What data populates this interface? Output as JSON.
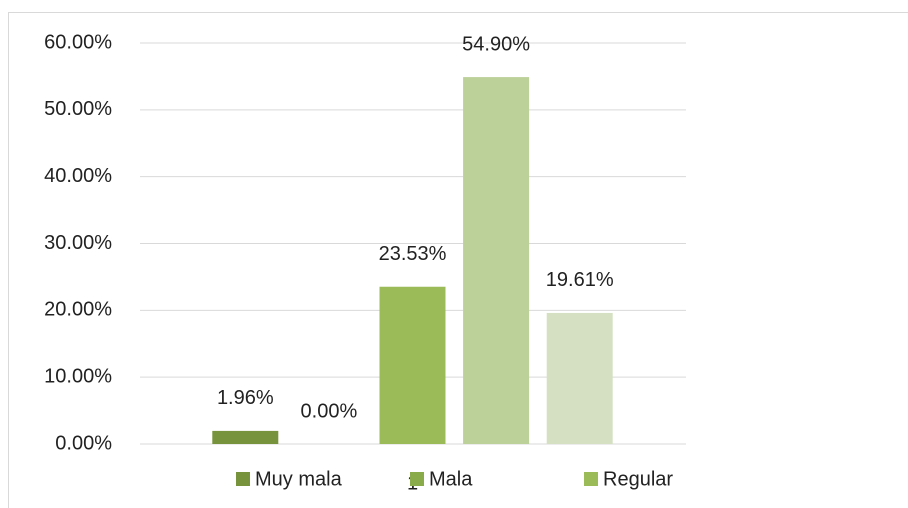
{
  "chart_data": {
    "type": "bar",
    "categories": [
      "1"
    ],
    "series": [
      {
        "name": "Muy mala",
        "color": "#77933c",
        "values": [
          1.96
        ],
        "value_labels": [
          "1.96%"
        ]
      },
      {
        "name": "Mala",
        "color": "#8aab4a",
        "values": [
          0
        ],
        "value_labels": [
          "0.00%"
        ]
      },
      {
        "name": "Regular",
        "color": "#9bbb59",
        "values": [
          23.53
        ],
        "value_labels": [
          "23.53%"
        ]
      },
      {
        "color": "#bcd09a",
        "values": [
          54.9
        ],
        "value_labels": [
          "54.90%"
        ]
      },
      {
        "color": "#d4e0c1",
        "values": [
          19.61
        ],
        "value_labels": [
          "19.61%"
        ]
      }
    ],
    "ylim": [
      0,
      60
    ],
    "yticks": [
      {
        "value": 0,
        "label": "0.00%"
      },
      {
        "value": 10,
        "label": "10.00%"
      },
      {
        "value": 20,
        "label": "20.00%"
      },
      {
        "value": 30,
        "label": "30.00%"
      },
      {
        "value": 40,
        "label": "40.00%"
      },
      {
        "value": 50,
        "label": "50.00%"
      },
      {
        "value": 60,
        "label": "60.00%"
      }
    ],
    "grid": true
  }
}
